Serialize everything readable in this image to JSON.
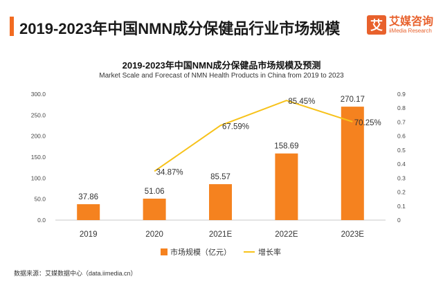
{
  "header": {
    "title": "2019-2023年中国NMN成分保健品行业市场规模",
    "logo_mark": "艾",
    "logo_cn": "艾媒咨询",
    "logo_en": "iiMedia Research"
  },
  "chart_data": {
    "type": "bar",
    "title": "2019-2023年中国NMN成分保健品市场规模及预测",
    "subtitle": "Market Scale and Forecast of NMN Health Products in China from 2019 to 2023",
    "categories": [
      "2019",
      "2020",
      "2021E",
      "2022E",
      "2023E"
    ],
    "series": [
      {
        "name": "市场规模（亿元）",
        "type": "bar",
        "axis": "left",
        "color": "#f5821f",
        "values": [
          37.86,
          51.06,
          85.57,
          158.69,
          270.17
        ],
        "labels": [
          "37.86",
          "51.06",
          "85.57",
          "158.69",
          "270.17"
        ]
      },
      {
        "name": "增长率",
        "type": "line",
        "axis": "right",
        "color": "#f7c21a",
        "values": [
          null,
          0.3487,
          0.6759,
          0.8545,
          0.7025
        ],
        "labels": [
          "",
          "34.87%",
          "67.59%",
          "85.45%",
          "70.25%"
        ]
      }
    ],
    "y_left": {
      "min": 0,
      "max": 300,
      "ticks": [
        "0.0",
        "50.0",
        "100.0",
        "150.0",
        "200.0",
        "250.0",
        "300.0"
      ]
    },
    "y_right": {
      "min": 0,
      "max": 0.9,
      "ticks": [
        "0",
        "0.1",
        "0.2",
        "0.3",
        "0.4",
        "0.5",
        "0.6",
        "0.7",
        "0.8",
        "0.9"
      ]
    },
    "legend_position": "bottom",
    "grid": false
  },
  "footer": {
    "source": "数据来源：艾媒数据中心（data.iimedia.cn）"
  }
}
